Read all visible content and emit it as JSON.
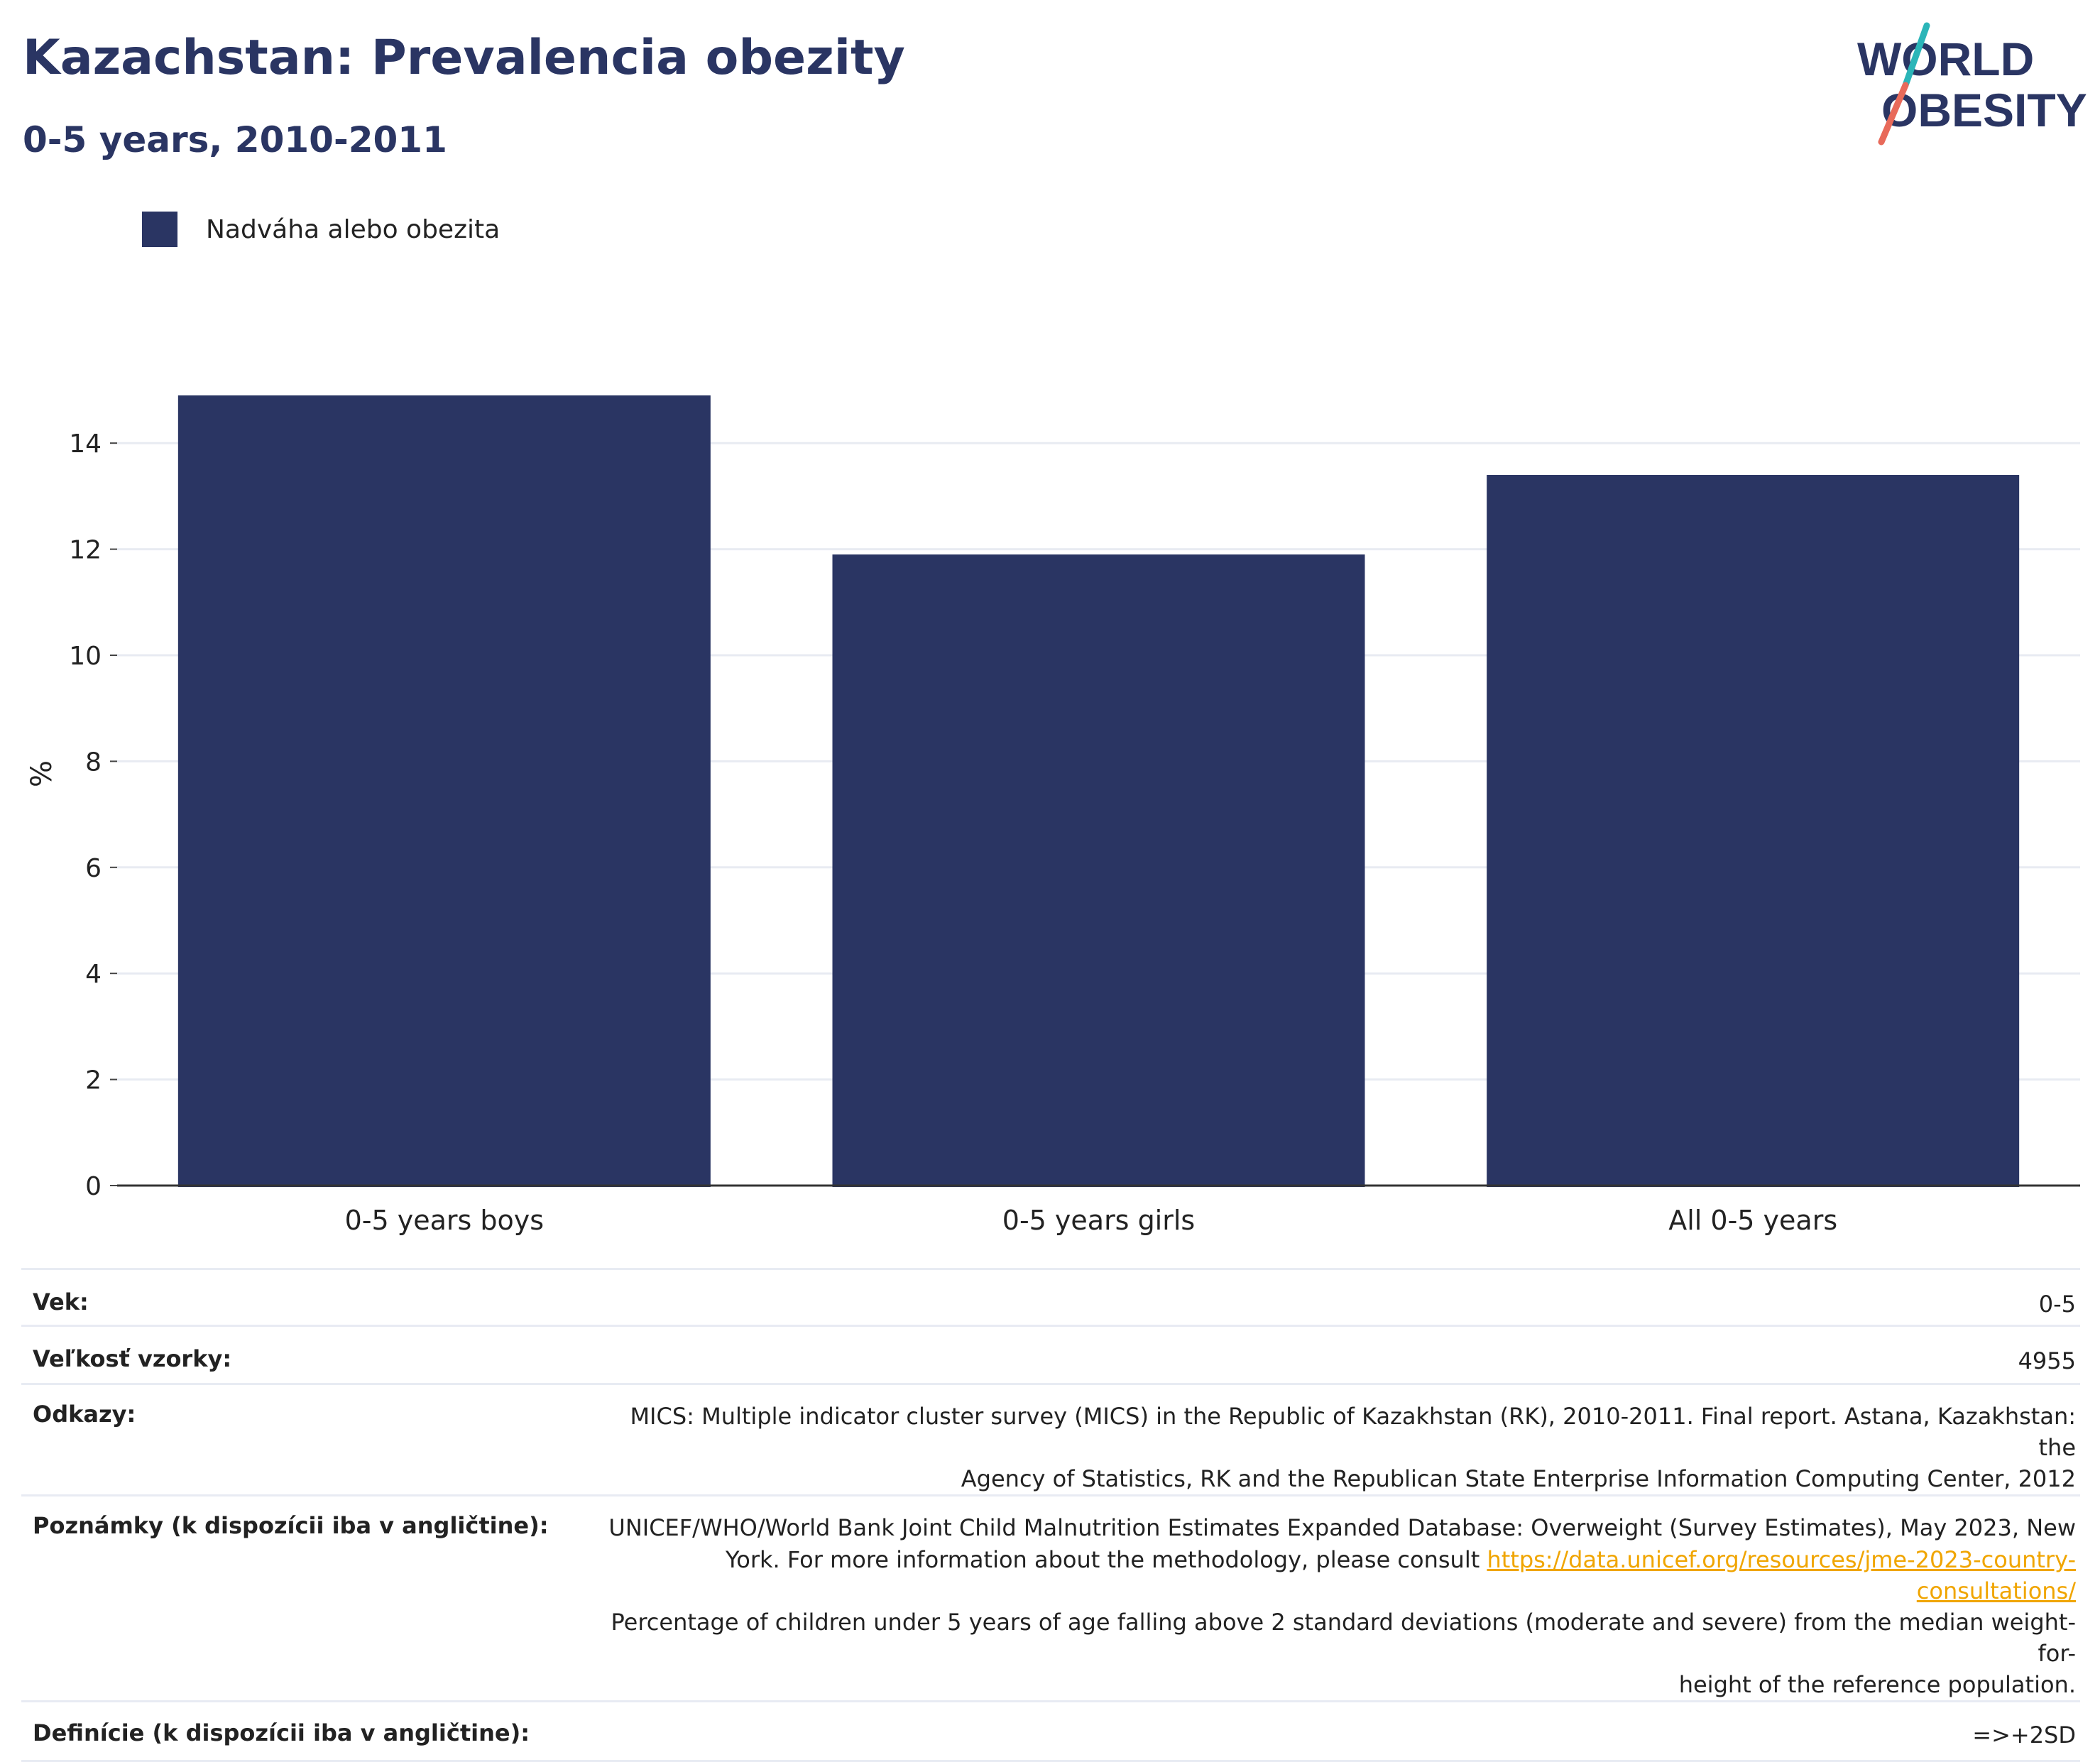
{
  "header": {
    "title": "Kazachstan: Prevalencia obezity",
    "subtitle": "0-5 years, 2010-2011"
  },
  "logo": {
    "line1": "WORLD",
    "line2": "OBESITY",
    "colors": {
      "text": "#2a3563",
      "slash_top": "#2bb5b8",
      "slash_bottom": "#e86a5a"
    }
  },
  "legend": {
    "label": "Nadváha alebo obezita",
    "color": "#2a3563"
  },
  "chart_data": {
    "type": "bar",
    "categories": [
      "0-5 years boys",
      "0-5 years girls",
      "All 0-5 years"
    ],
    "series": [
      {
        "name": "Nadváha alebo obezita",
        "values": [
          14.9,
          11.9,
          13.4
        ],
        "color": "#2a3563"
      }
    ],
    "ylabel": "%",
    "xlabel": "",
    "ylim": [
      0,
      15.6
    ],
    "yticks": [
      0,
      2,
      4,
      6,
      8,
      10,
      12,
      14
    ],
    "grid": true,
    "legend_position": "top-left"
  },
  "meta": {
    "rows": [
      {
        "key": "Vek:",
        "value": "0-5"
      },
      {
        "key": "Veľkosť vzorky:",
        "value": "4955"
      },
      {
        "key": "Odkazy:",
        "value_lines": [
          "MICS: Multiple indicator cluster survey (MICS) in the Republic of Kazakhstan (RK), 2010-2011. Final report. Astana, Kazakhstan: the",
          "Agency of Statistics, RK and the Republican State Enterprise Information Computing Center, 2012"
        ]
      },
      {
        "key": "Poznámky (k dispozícii iba v angličtine):",
        "line1": "UNICEF/WHO/World Bank Joint Child Malnutrition Estimates Expanded Database: Overweight (Survey Estimates), May 2023, New",
        "line2_prefix": "York. For more information about the methodology, please consult ",
        "link": "https://data.unicef.org/resources/jme-2023-country-consultations/",
        "line3": "Percentage of children under 5 years of age falling above 2 standard deviations (moderate and severe) from the median weight-for-",
        "line4": "height of the reference population.",
        "link_color": "#f0a500"
      },
      {
        "key": "Definície (k dispozícii iba v angličtine):",
        "value": "=>+2SD"
      }
    ]
  }
}
